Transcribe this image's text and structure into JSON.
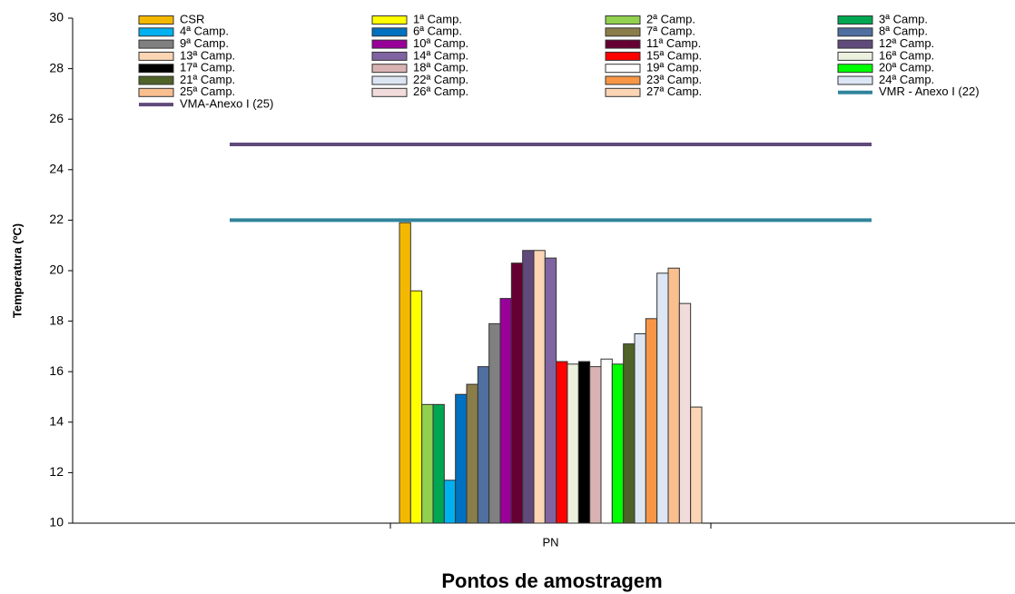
{
  "chart_data": {
    "type": "bar",
    "x_label": "Pontos de amostragem",
    "y_label": "Temperatura (ºC)",
    "categories": [
      "PN"
    ],
    "ylim": [
      10,
      30
    ],
    "yticks": [
      10,
      12,
      14,
      16,
      18,
      20,
      22,
      24,
      26,
      28,
      30
    ],
    "series": [
      {
        "name": "CSR",
        "color": "#f5b800",
        "values": [
          21.9
        ]
      },
      {
        "name": "1ª Camp.",
        "color": "#ffff00",
        "values": [
          19.2
        ]
      },
      {
        "name": "2ª Camp.",
        "color": "#92d050",
        "values": [
          14.7
        ]
      },
      {
        "name": "3ª Camp.",
        "color": "#00a651",
        "values": [
          14.7
        ]
      },
      {
        "name": "4ª Camp.",
        "color": "#00b0f0",
        "values": [
          11.7
        ]
      },
      {
        "name": "6ª Camp.",
        "color": "#0070c0",
        "values": [
          15.1
        ]
      },
      {
        "name": "7ª Camp.",
        "color": "#8b7d4a",
        "values": [
          15.5
        ]
      },
      {
        "name": "8ª Camp.",
        "color": "#4f6fa0",
        "values": [
          16.2
        ]
      },
      {
        "name": "9ª Camp.",
        "color": "#808080",
        "values": [
          17.9
        ]
      },
      {
        "name": "10ª Camp.",
        "color": "#990099",
        "values": [
          18.9
        ]
      },
      {
        "name": "11ª Camp.",
        "color": "#660033",
        "values": [
          20.3
        ]
      },
      {
        "name": "12ª Camp.",
        "color": "#604a7b",
        "values": [
          20.8
        ]
      },
      {
        "name": "13ª Camp.",
        "color": "#fcd5b4",
        "values": [
          20.8
        ]
      },
      {
        "name": "14ª Camp.",
        "color": "#8064a2",
        "values": [
          20.5
        ]
      },
      {
        "name": "15ª Camp.",
        "color": "#ff0000",
        "values": [
          16.4
        ]
      },
      {
        "name": "16ª Camp.",
        "color": "#ebf1de",
        "values": [
          16.3
        ]
      },
      {
        "name": "17ª Camp.",
        "color": "#000000",
        "values": [
          16.4
        ]
      },
      {
        "name": "18ª Camp.",
        "color": "#d9b3b3",
        "values": [
          16.2
        ]
      },
      {
        "name": "19ª Camp.",
        "color": "#ffffff",
        "values": [
          16.5
        ]
      },
      {
        "name": "20ª Camp.",
        "color": "#00ff00",
        "values": [
          16.3
        ]
      },
      {
        "name": "21ª Camp.",
        "color": "#4f6228",
        "values": [
          17.1
        ]
      },
      {
        "name": "22ª Camp.",
        "color": "#dce6f2",
        "values": [
          17.5
        ]
      },
      {
        "name": "23ª Camp.",
        "color": "#f79646",
        "values": [
          18.1
        ]
      },
      {
        "name": "24ª Camp.",
        "color": "#dce6f5",
        "values": [
          19.9
        ]
      },
      {
        "name": "25ª Camp.",
        "color": "#fabf8f",
        "values": [
          20.1
        ]
      },
      {
        "name": "26ª Camp.",
        "color": "#f2dcdb",
        "values": [
          18.7
        ]
      },
      {
        "name": "27ª Camp.",
        "color": "#fbd5b5",
        "values": [
          14.6
        ]
      }
    ],
    "lines": [
      {
        "name": "VMR - Anexo I (22)",
        "color": "#31849b",
        "value": 22
      },
      {
        "name": "VMA-Anexo I (25)",
        "color": "#604a7b",
        "value": 25
      }
    ]
  }
}
